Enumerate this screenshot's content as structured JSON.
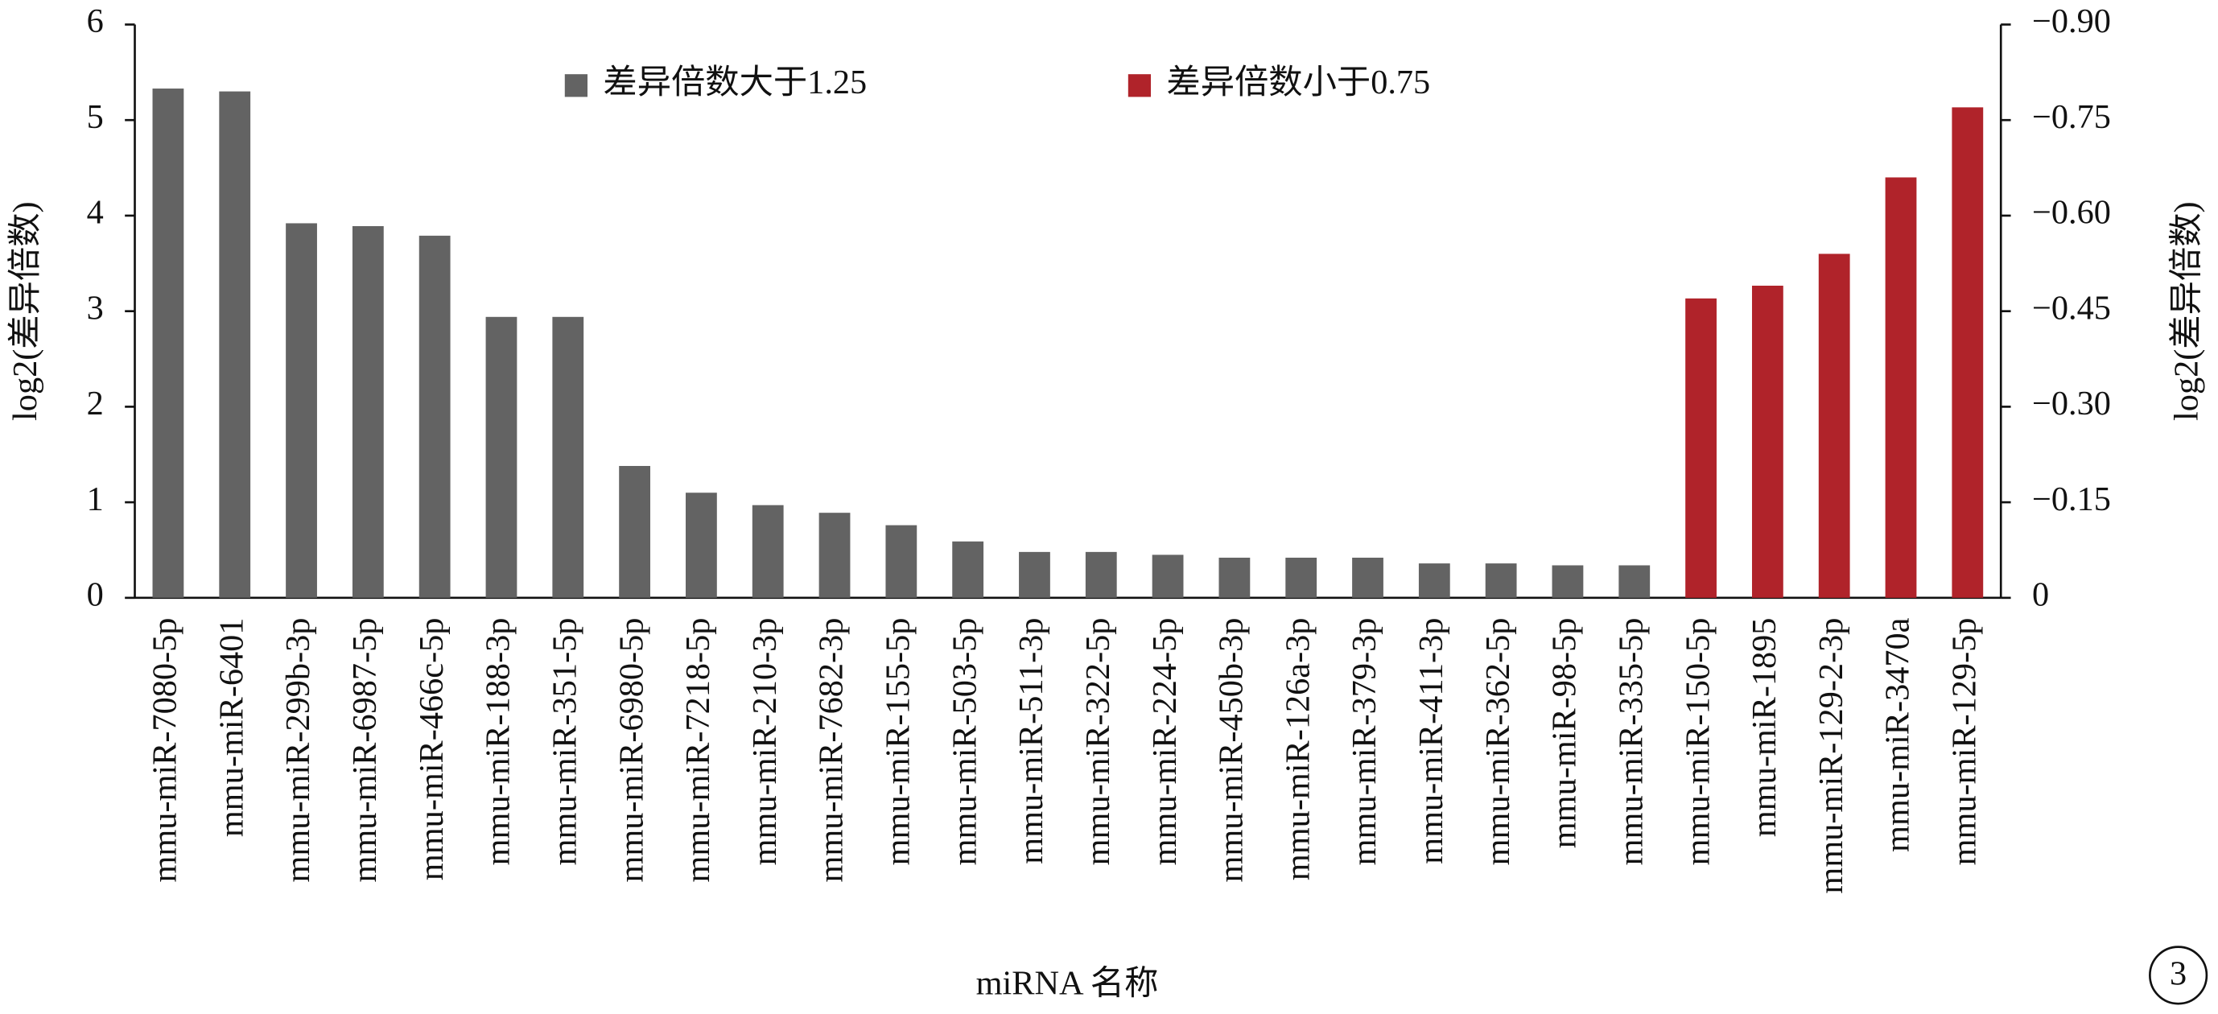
{
  "chart_data": {
    "type": "bar",
    "categories": [
      "mmu-miR-7080-5p",
      "mmu-miR-6401",
      "mmu-miR-299b-3p",
      "mmu-miR-6987-5p",
      "mmu-miR-466c-5p",
      "mmu-miR-188-3p",
      "mmu-miR-351-5p",
      "mmu-miR-6980-5p",
      "mmu-miR-7218-5p",
      "mmu-miR-210-3p",
      "mmu-miR-7682-3p",
      "mmu-miR-155-5p",
      "mmu-miR-503-5p",
      "mmu-miR-511-3p",
      "mmu-miR-322-5p",
      "mmu-miR-224-5p",
      "mmu-miR-450b-3p",
      "mmu-miR-126a-3p",
      "mmu-miR-379-3p",
      "mmu-miR-411-3p",
      "mmu-miR-362-5p",
      "mmu-miR-98-5p",
      "mmu-miR-335-5p",
      "mmu-miR-150-5p",
      "mmu-miR-1895",
      "mmu-miR-129-2-3p",
      "mmu-miR-3470a",
      "mmu-miR-129-5p"
    ],
    "series": [
      {
        "name": "差异倍数大于1.25",
        "color": "#636363",
        "values": [
          5.33,
          5.3,
          3.92,
          3.89,
          3.79,
          2.94,
          2.94,
          1.38,
          1.1,
          0.97,
          0.89,
          0.76,
          0.59,
          0.48,
          0.48,
          0.45,
          0.42,
          0.42,
          0.42,
          0.36,
          0.36,
          0.34,
          0.34,
          null,
          null,
          null,
          null,
          null
        ]
      },
      {
        "name": "差异倍数小于0.75",
        "color": "#b0232a",
        "axis": "y2",
        "values": [
          null,
          null,
          null,
          null,
          null,
          null,
          null,
          null,
          null,
          null,
          null,
          null,
          null,
          null,
          null,
          null,
          null,
          null,
          null,
          null,
          null,
          null,
          null,
          -0.47,
          -0.49,
          -0.54,
          -0.66,
          -0.77
        ]
      }
    ],
    "xlabel": "miRNA 名称",
    "ylabel": "log2(差异倍数)",
    "y2label": "log2(差异倍数)",
    "ylim": [
      0,
      6
    ],
    "yticks": [
      0,
      1,
      2,
      3,
      4,
      5,
      6
    ],
    "y2lim": [
      0,
      -0.9
    ],
    "y2ticks": [
      0,
      {
        "value": -0.15,
        "label": "−0.15"
      },
      {
        "value": -0.3,
        "label": "−0.30"
      },
      {
        "value": -0.45,
        "label": "−0.45"
      },
      {
        "value": -0.6,
        "label": "−0.60"
      },
      {
        "value": -0.75,
        "label": "−0.75"
      },
      {
        "value": -0.9,
        "label": "−0.90"
      }
    ],
    "legend": "top",
    "panel_label": "3"
  }
}
